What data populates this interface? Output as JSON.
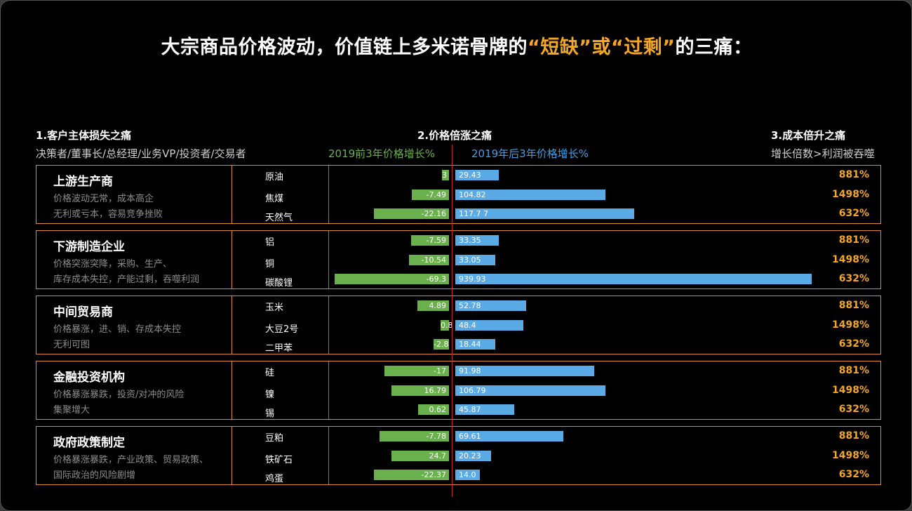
{
  "title": {
    "part1": "大宗商品价格波动，价值链上多米诺骨牌的",
    "highlight": "“短缺”或“过剩”",
    "part2": "的三痛："
  },
  "columns": {
    "col1": {
      "header": "1.客户主体损失之痛",
      "sub": "决策者/董事长/总经理/业务VP/投资者/交易者"
    },
    "col2": {
      "header": "2.价格倍涨之痛",
      "left_sub": "2019前3年价格增长%",
      "right_sub": "2019年后3年价格增长%"
    },
    "col3": {
      "header": "3.成本倍升之痛",
      "sub": "增长倍数>利润被吞噬"
    }
  },
  "colors": {
    "accent": "#f5a623",
    "border": "#e08a32",
    "green": "#6ab04c",
    "blue": "#5aaae6",
    "divider": "#c0272d"
  },
  "groups": [
    {
      "name": "上游生产商",
      "desc": [
        "价格波动无常，成本高企",
        "无利或亏本，容易竞争挫败"
      ],
      "items": [
        {
          "name": "原油",
          "before": "3",
          "after": "29.43",
          "mult": "881%"
        },
        {
          "name": "焦煤",
          "before": "-7.49",
          "after": "104.82",
          "mult": "1498%"
        },
        {
          "name": "天然气",
          "before": "-22.16",
          "after": "117.7 7",
          "mult": "632%"
        }
      ]
    },
    {
      "name": "下游制造企业",
      "desc": [
        "价格突涨突降，采购、生产、",
        "库存成本失控，产能过剩，吞噬利润"
      ],
      "items": [
        {
          "name": "铝",
          "before": "-7.59",
          "after": "33.35",
          "mult": "881%"
        },
        {
          "name": "铜",
          "before": "-10.54",
          "after": "33.05",
          "mult": "1498%"
        },
        {
          "name": "碳酸锂",
          "before": "-69.3",
          "after": "939.93",
          "mult": "632%"
        }
      ]
    },
    {
      "name": "中间贸易商",
      "desc": [
        "价格暴涨，进、销、存成本失控",
        "无利可图"
      ],
      "items": [
        {
          "name": "玉米",
          "before": "4.89",
          "after": "52.78",
          "mult": "881%"
        },
        {
          "name": "大豆2号",
          "before": "0.8",
          "after": "48.4",
          "mult": "1498%"
        },
        {
          "name": "二甲苯",
          "before": "-2.8",
          "after": "18.44",
          "mult": "632%"
        }
      ]
    },
    {
      "name": "金融投资机构",
      "desc": [
        "价格暴涨暴跌，投资/对冲的风险",
        "集聚增大"
      ],
      "items": [
        {
          "name": "硅",
          "before": "-17",
          "after": "91.98",
          "mult": "881%"
        },
        {
          "name": "镍",
          "before": "16.79",
          "after": "106.79",
          "mult": "1498%"
        },
        {
          "name": "锡",
          "before": "0.62",
          "after": "45.87",
          "mult": "632%"
        }
      ]
    },
    {
      "name": "政府政策制定",
      "desc": [
        "价格暴涨暴跌，产业政策、贸易政策、",
        "国际政治的风险剧增"
      ],
      "items": [
        {
          "name": "豆粕",
          "before": "-7.78",
          "after": "69.61",
          "mult": "881%"
        },
        {
          "name": "铁矿石",
          "before": "24.7",
          "after": "20.23",
          "mult": "1498%"
        },
        {
          "name": "鸡蛋",
          "before": "-22.37",
          "after": "14.0",
          "mult": "632%"
        }
      ]
    }
  ],
  "chart_data": {
    "type": "bar",
    "title": "",
    "categories": [
      "原油",
      "焦煤",
      "天然气",
      "铝",
      "铜",
      "碳酸锂",
      "玉米",
      "大豆2号",
      "二甲苯",
      "硅",
      "镍",
      "锡",
      "豆粕",
      "铁矿石",
      "鸡蛋"
    ],
    "series": [
      {
        "name": "2019前3年价格增长%",
        "values": [
          3,
          -7.49,
          -22.16,
          -7.59,
          -10.54,
          -69.3,
          4.89,
          0.8,
          -2.8,
          -17,
          16.79,
          0.62,
          -7.78,
          24.7,
          -22.37
        ]
      },
      {
        "name": "2019年后3年价格增长%",
        "values": [
          29.43,
          104.82,
          117.77,
          33.35,
          33.05,
          939.93,
          52.78,
          48.4,
          18.44,
          91.98,
          106.79,
          45.87,
          69.61,
          20.23,
          14.0
        ]
      }
    ],
    "bar_lengths_relative_to_value_axis": {
      "left_lengths": [
        10,
        53,
        107,
        54,
        57,
        163,
        45,
        12,
        22,
        92,
        82,
        44,
        99,
        82,
        107
      ],
      "right_lengths": [
        62,
        214,
        255,
        62,
        57,
        508,
        101,
        97,
        57,
        198,
        214,
        84,
        154,
        51,
        35
      ]
    },
    "legend": "top"
  }
}
